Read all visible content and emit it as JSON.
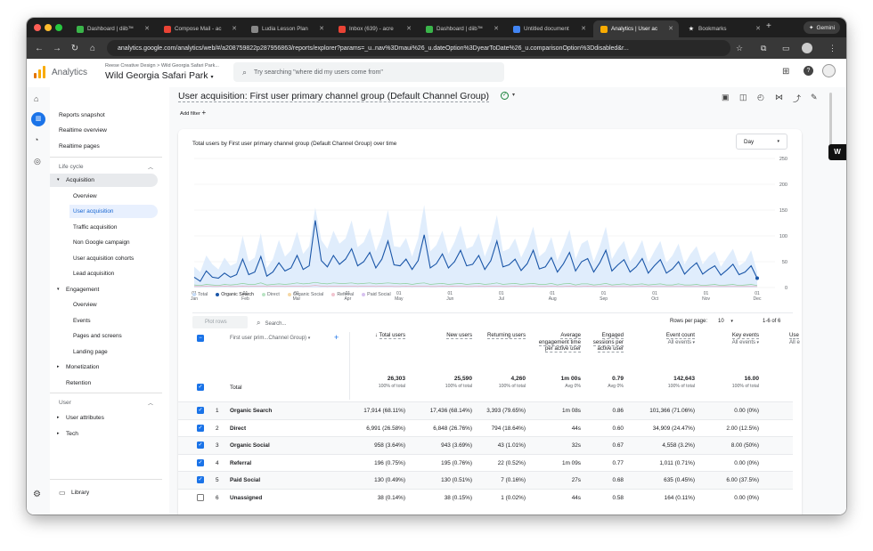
{
  "browser": {
    "tabs": [
      {
        "label": "Dashboard | diib™",
        "icon": "diib-icon",
        "color": "#3ab54a"
      },
      {
        "label": "Compose Mail - ac",
        "icon": "gmail-icon",
        "color": "#ea4335"
      },
      {
        "label": "Ludia Lesson Plan",
        "icon": "ludia-icon",
        "color": "#888888"
      },
      {
        "label": "Inbox (639) - acre",
        "icon": "gmail-icon",
        "color": "#ea4335"
      },
      {
        "label": "Dashboard | diib™",
        "icon": "diib-icon",
        "color": "#3ab54a"
      },
      {
        "label": "Untitled document",
        "icon": "docs-icon",
        "color": "#4285f4"
      },
      {
        "label": "Analytics | User ac",
        "icon": "analytics-icon",
        "color": "#f9ab00"
      },
      {
        "label": "Bookmarks",
        "icon": "star-icon",
        "color": "#ffffff"
      }
    ],
    "gemini_label": "Gemini",
    "url": "analytics.google.com/analytics/web/#/a208759822p287956863/reports/explorer?params=_u..nav%3Dmaui%26_u.dateOption%3DyearToDate%26_u.comparisonOption%3Ddisabled&r..."
  },
  "header": {
    "product": "Analytics",
    "breadcrumb": "Reese Creative Design > Wild Georgia Safari Park...",
    "property": "Wild Georgia Safari Park",
    "search_placeholder": "Try searching \"where did my users come from\""
  },
  "sidebar": {
    "top": [
      "Reports snapshot",
      "Realtime overview",
      "Realtime pages"
    ],
    "lifecycle_label": "Life cycle",
    "acquisition_label": "Acquisition",
    "acquisition_items": [
      "Overview",
      "User acquisition",
      "Traffic acquisition",
      "Non Google campaign",
      "User acquisition cohorts",
      "Lead acquisition"
    ],
    "engagement_label": "Engagement",
    "engagement_items": [
      "Overview",
      "Events",
      "Pages and screens",
      "Landing page"
    ],
    "monetization_label": "Monetization",
    "retention_label": "Retention",
    "user_label": "User",
    "user_attributes_label": "User attributes",
    "tech_label": "Tech",
    "library_label": "Library"
  },
  "report": {
    "title": "User acquisition: First user primary channel group (Default Channel Group)",
    "add_filter": "Add filter",
    "chart_title": "Total users by First user primary channel group (Default Channel Group) over time",
    "granularity": "Day",
    "legend": [
      "Total",
      "Organic Search",
      "Direct",
      "Organic Social",
      "Referral",
      "Paid Social"
    ],
    "plot_rows": "Plot rows",
    "search_placeholder": "Search...",
    "rows_per_page_label": "Rows per page:",
    "rows_per_page": "10",
    "pagination": "1-6 of 6"
  },
  "chart_data": {
    "type": "line",
    "x_ticks": [
      [
        "01",
        "Jan"
      ],
      [
        "01",
        "Feb"
      ],
      [
        "01",
        "Mar"
      ],
      [
        "01",
        "Apr"
      ],
      [
        "01",
        "May"
      ],
      [
        "01",
        "Jun"
      ],
      [
        "01",
        "Jul"
      ],
      [
        "01",
        "Aug"
      ],
      [
        "01",
        "Sep"
      ],
      [
        "01",
        "Oct"
      ],
      [
        "01",
        "Nov"
      ],
      [
        "01",
        "Dec"
      ]
    ],
    "y_ticks": [
      "250",
      "200",
      "150",
      "100",
      "50",
      "0"
    ],
    "ylim": [
      0,
      250
    ],
    "series": [
      {
        "name": "Total",
        "color": "#dbeafb",
        "values": [
          40,
          30,
          62,
          45,
          35,
          58,
          42,
          48,
          100,
          50,
          58,
          105,
          38,
          55,
          92,
          60,
          72,
          108,
          65,
          80,
          155,
          92,
          75,
          110,
          85,
          95,
          130,
          78,
          88,
          115,
          70,
          100,
          150,
          80,
          78,
          96,
          60,
          95,
          160,
          70,
          82,
          110,
          65,
          88,
          120,
          75,
          80,
          105,
          60,
          90,
          140,
          70,
          75,
          95,
          58,
          82,
          118,
          60,
          70,
          98,
          52,
          80,
          112,
          55,
          85,
          92,
          50,
          80,
          118,
          55,
          75,
          90,
          50,
          68,
          92,
          48,
          70,
          90,
          48,
          62,
          85,
          45,
          65,
          80,
          45,
          60,
          70,
          40,
          58,
          75,
          42,
          50,
          72,
          30
        ]
      },
      {
        "name": "Organic Search",
        "color": "#1a56a8",
        "values": [
          20,
          12,
          32,
          20,
          18,
          28,
          20,
          25,
          55,
          25,
          30,
          60,
          22,
          30,
          48,
          32,
          38,
          62,
          35,
          42,
          130,
          52,
          40,
          62,
          45,
          55,
          75,
          42,
          50,
          68,
          38,
          55,
          90,
          44,
          42,
          55,
          35,
          52,
          102,
          38,
          46,
          65,
          38,
          50,
          72,
          42,
          45,
          62,
          35,
          52,
          90,
          40,
          44,
          55,
          33,
          46,
          72,
          36,
          40,
          58,
          30,
          46,
          68,
          32,
          50,
          56,
          30,
          48,
          72,
          32,
          44,
          54,
          30,
          40,
          56,
          28,
          42,
          54,
          28,
          36,
          50,
          26,
          38,
          48,
          26,
          35,
          42,
          24,
          34,
          45,
          25,
          30,
          42,
          18
        ]
      },
      {
        "name": "Direct",
        "color": "#8ccf9b",
        "values": [
          5,
          4,
          6,
          5,
          4,
          6,
          5,
          6,
          8,
          6,
          6,
          9,
          5,
          6,
          7,
          6,
          7,
          9,
          7,
          8,
          10,
          8,
          7,
          9,
          8,
          8,
          9,
          7,
          8,
          9,
          7,
          8,
          9,
          8,
          7,
          8,
          6,
          8,
          9,
          6,
          7,
          8,
          6,
          7,
          8,
          6,
          7,
          8,
          6,
          7,
          9,
          6,
          7,
          8,
          6,
          7,
          8,
          6,
          6,
          8,
          5,
          7,
          8,
          5,
          7,
          7,
          5,
          6,
          8,
          5,
          6,
          7,
          5,
          6,
          7,
          5,
          6,
          7,
          5,
          5,
          7,
          5,
          5,
          6,
          4,
          5,
          6,
          4,
          5,
          6,
          4,
          5,
          6,
          4
        ]
      },
      {
        "name": "Referral",
        "color": "#e8a0b0",
        "values": [
          2,
          2,
          3,
          2,
          2,
          3,
          2,
          2,
          3,
          2,
          3,
          3,
          2,
          3,
          3,
          2,
          3,
          3,
          2,
          3,
          4,
          3,
          2,
          3,
          3,
          3,
          3,
          2,
          3,
          3,
          2,
          3,
          3,
          2,
          2,
          3,
          2,
          3,
          3,
          2,
          2,
          3,
          2,
          3,
          3,
          2,
          2,
          3,
          2,
          3,
          3,
          2,
          2,
          3,
          2,
          2,
          3,
          2,
          2,
          3,
          2,
          2,
          3,
          2,
          2,
          3,
          2,
          2,
          3,
          2,
          2,
          2,
          2,
          2,
          3,
          2,
          2,
          2,
          2,
          2,
          2,
          2,
          2,
          2,
          2,
          2,
          2,
          2,
          2,
          2,
          2,
          2,
          2,
          2
        ]
      }
    ]
  },
  "table": {
    "dimension_label": "First user prim...Channel Group)",
    "columns": [
      {
        "label": "Total users",
        "sub": ""
      },
      {
        "label": "New users",
        "sub": ""
      },
      {
        "label": "Returning users",
        "sub": ""
      },
      {
        "label": "Average engagement time per active user",
        "sub": ""
      },
      {
        "label": "Engaged sessions per active user",
        "sub": ""
      },
      {
        "label": "Event count",
        "sub": "All events"
      },
      {
        "label": "Key events",
        "sub": "All events"
      },
      {
        "label": "Use",
        "sub": "All e"
      }
    ],
    "total": {
      "label": "Total",
      "values": [
        "26,303",
        "25,590",
        "4,260",
        "1m 00s",
        "0.79",
        "142,643",
        "16.00"
      ],
      "subs": [
        "100% of total",
        "100% of total",
        "100% of total",
        "Avg 0%",
        "Avg 0%",
        "100% of total",
        "100% of total"
      ]
    },
    "rows": [
      {
        "n": "1",
        "name": "Organic Search",
        "checked": true,
        "values": [
          "17,914 (68.11%)",
          "17,436 (68.14%)",
          "3,393 (79.65%)",
          "1m 08s",
          "0.86",
          "101,366 (71.06%)",
          "0.00 (0%)"
        ]
      },
      {
        "n": "2",
        "name": "Direct",
        "checked": true,
        "values": [
          "6,991 (26.58%)",
          "6,848 (26.76%)",
          "794 (18.64%)",
          "44s",
          "0.60",
          "34,909 (24.47%)",
          "2.00 (12.5%)"
        ]
      },
      {
        "n": "3",
        "name": "Organic Social",
        "checked": true,
        "values": [
          "958 (3.64%)",
          "943 (3.69%)",
          "43 (1.01%)",
          "32s",
          "0.67",
          "4,558 (3.2%)",
          "8.00 (50%)"
        ]
      },
      {
        "n": "4",
        "name": "Referral",
        "checked": true,
        "values": [
          "196 (0.75%)",
          "195 (0.76%)",
          "22 (0.52%)",
          "1m 09s",
          "0.77",
          "1,011 (0.71%)",
          "0.00 (0%)"
        ]
      },
      {
        "n": "5",
        "name": "Paid Social",
        "checked": true,
        "values": [
          "130 (0.49%)",
          "130 (0.51%)",
          "7 (0.16%)",
          "27s",
          "0.68",
          "635 (0.45%)",
          "6.00 (37.5%)"
        ]
      },
      {
        "n": "6",
        "name": "Unassigned",
        "checked": false,
        "values": [
          "38 (0.14%)",
          "38 (0.15%)",
          "1 (0.02%)",
          "44s",
          "0.58",
          "164 (0.11%)",
          "0.00 (0%)"
        ]
      }
    ]
  }
}
